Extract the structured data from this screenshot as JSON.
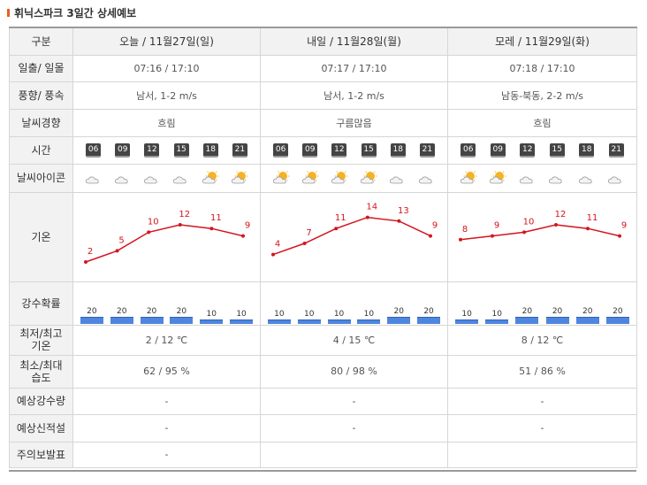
{
  "title": "휘닉스파크 3일간 상세예보",
  "labels": {
    "category": "구분",
    "sunrise": "일출/ 일몰",
    "wind": "풍향/ 풍속",
    "trend": "날씨경향",
    "time": "시간",
    "icon": "날씨아이콘",
    "temp": "기온",
    "precip_prob": "강수확률",
    "minmax_temp_1": "최저/최고",
    "minmax_temp_2": "기온",
    "minmax_hum_1": "최소/최대",
    "minmax_hum_2": "습도",
    "precip_amount": "예상강수량",
    "snow": "예상신적설",
    "warning": "주의보발표"
  },
  "days": [
    {
      "header": "오늘 / 11월27일(일)",
      "sun": "07:16 / 17:10",
      "wind": "남서, 1-2 m/s",
      "trend": "흐림",
      "hours": [
        "06",
        "09",
        "12",
        "15",
        "18",
        "21"
      ],
      "icons": [
        "cloudy",
        "cloudy",
        "cloudy",
        "cloudy",
        "partly-cloudy",
        "partly-cloudy"
      ],
      "temps": [
        2,
        5,
        10,
        12,
        11,
        9
      ],
      "probs": [
        20,
        20,
        20,
        20,
        10,
        10
      ],
      "minmax_temp": "2 / 12 ℃",
      "minmax_hum": "62 / 95 %",
      "precip": "-",
      "snow": "-",
      "warning": "-"
    },
    {
      "header": "내일 / 11월28일(월)",
      "sun": "07:17 / 17:10",
      "wind": "남서, 1-2 m/s",
      "trend": "구름많음",
      "hours": [
        "06",
        "09",
        "12",
        "15",
        "18",
        "21"
      ],
      "icons": [
        "partly-cloudy",
        "partly-cloudy",
        "partly-cloudy",
        "partly-cloudy",
        "cloudy",
        "cloudy"
      ],
      "temps": [
        4,
        7,
        11,
        14,
        13,
        9
      ],
      "probs": [
        10,
        10,
        10,
        10,
        20,
        20
      ],
      "minmax_temp": "4 / 15 ℃",
      "minmax_hum": "80 / 98 %",
      "precip": "-",
      "snow": "-",
      "warning": ""
    },
    {
      "header": "모레 / 11월29일(화)",
      "sun": "07:18 / 17:10",
      "wind": "남동-북동, 2-2 m/s",
      "trend": "흐림",
      "hours": [
        "06",
        "09",
        "12",
        "15",
        "18",
        "21"
      ],
      "icons": [
        "partly-cloudy",
        "partly-cloudy",
        "cloudy",
        "cloudy",
        "cloudy",
        "cloudy"
      ],
      "temps": [
        8,
        9,
        10,
        12,
        11,
        9
      ],
      "probs": [
        10,
        10,
        20,
        20,
        20,
        20
      ],
      "minmax_temp": "8 / 12 ℃",
      "minmax_hum": "51 / 86 %",
      "precip": "-",
      "snow": "-",
      "warning": ""
    }
  ],
  "colors": {
    "temp_line": "#d4151e",
    "prob_bar": "#4e86df",
    "accent": "#e8601c"
  },
  "chart_data": [
    {
      "type": "line",
      "x": [
        "06",
        "09",
        "12",
        "15",
        "18",
        "21"
      ],
      "series": [],
      "values": [
        2,
        5,
        10,
        12,
        11,
        9
      ]
    },
    {
      "type": "line",
      "x": [
        "06",
        "09",
        "12",
        "15",
        "18",
        "21"
      ],
      "series": [],
      "values": [
        4,
        7,
        11,
        14,
        13,
        9
      ]
    },
    {
      "type": "line",
      "x": [
        "06",
        "09",
        "12",
        "15",
        "18",
        "21"
      ],
      "series": [],
      "values": [
        8,
        9,
        10,
        12,
        11,
        9
      ]
    },
    {
      "type": "bar",
      "categories": [
        "06",
        "09",
        "12",
        "15",
        "18",
        "21"
      ],
      "values": [
        20,
        20,
        20,
        20,
        10,
        10
      ]
    },
    {
      "type": "bar",
      "categories": [
        "06",
        "09",
        "12",
        "15",
        "18",
        "21"
      ],
      "values": [
        10,
        10,
        10,
        10,
        20,
        20
      ]
    },
    {
      "type": "bar",
      "categories": [
        "06",
        "09",
        "12",
        "15",
        "18",
        "21"
      ],
      "values": [
        10,
        10,
        20,
        20,
        20,
        20
      ]
    }
  ]
}
